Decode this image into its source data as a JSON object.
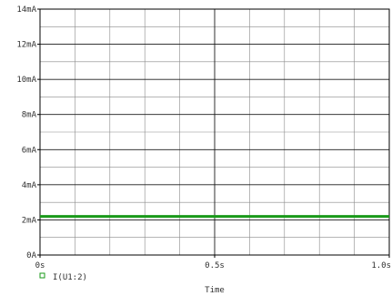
{
  "chart_data": {
    "type": "line",
    "title": "",
    "xlabel": "Time",
    "ylabel": "",
    "xlim": [
      0,
      1.0
    ],
    "ylim": [
      0,
      14
    ],
    "x_ticks": [
      {
        "value": 0,
        "label": "0s"
      },
      {
        "value": 0.5,
        "label": "0.5s"
      },
      {
        "value": 1.0,
        "label": "1.0s"
      }
    ],
    "y_ticks": [
      {
        "value": 0,
        "label": "0A"
      },
      {
        "value": 2,
        "label": "2mA"
      },
      {
        "value": 4,
        "label": "4mA"
      },
      {
        "value": 6,
        "label": "6mA"
      },
      {
        "value": 8,
        "label": "8mA"
      },
      {
        "value": 10,
        "label": "10mA"
      },
      {
        "value": 12,
        "label": "12mA"
      },
      {
        "value": 14,
        "label": "14mA"
      }
    ],
    "grid": true,
    "legend_position": "bottom-left",
    "series": [
      {
        "name": "I(U1:2)",
        "color": "#1a9a1a",
        "x": [
          0,
          1.0
        ],
        "y": [
          2.2,
          2.2
        ]
      }
    ]
  }
}
